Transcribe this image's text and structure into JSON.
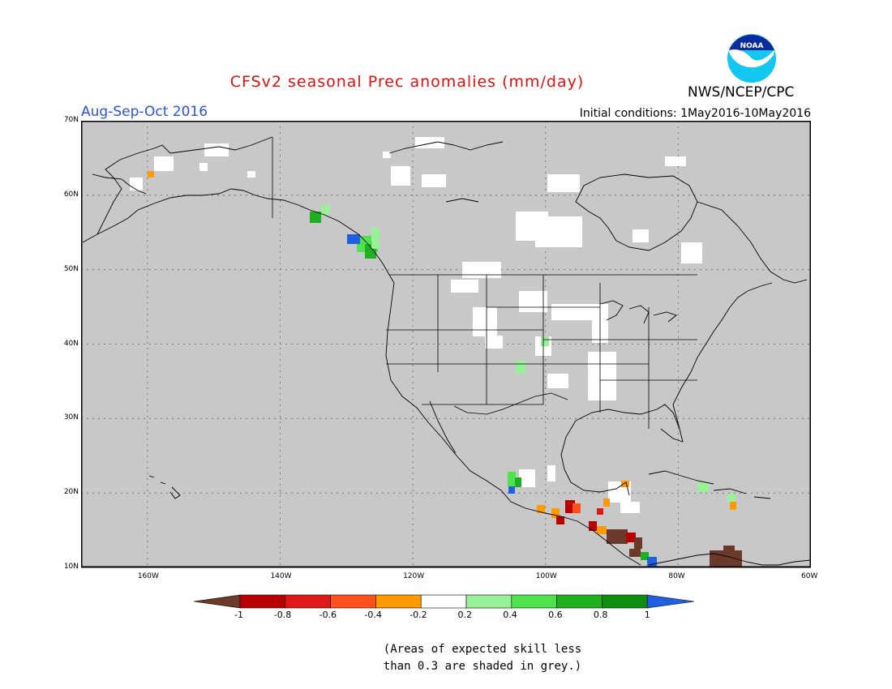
{
  "header": {
    "title": "CFSv2 seasonal Prec anomalies (mm/day)",
    "period": "Aug-Sep-Oct 2016",
    "initial_conditions": "Initial conditions: 1May2016-10May2016",
    "agency": "NWS/NCEP/CPC",
    "logo_text": "NOAA"
  },
  "map": {
    "background_color": "#c8c8c8",
    "lat_labels": [
      "70N",
      "60N",
      "50N",
      "40N",
      "30N",
      "20N",
      "10N"
    ],
    "lon_labels": [
      "160W",
      "140W",
      "120W",
      "100W",
      "80W",
      "60W"
    ],
    "lat_values": [
      70,
      60,
      50,
      40,
      30,
      20,
      10
    ],
    "lon_values": [
      -160,
      -140,
      -120,
      -100,
      -80,
      -60
    ],
    "extent": {
      "lon_min": -170,
      "lon_max": -60,
      "lat_min": 10,
      "lat_max": 70
    }
  },
  "colorbar": {
    "labels": [
      "-1",
      "-0.8",
      "-0.6",
      "-0.4",
      "-0.2",
      "0.2",
      "0.4",
      "0.6",
      "0.8",
      "1"
    ],
    "colors": [
      "#6b3a2a",
      "#b80000",
      "#e01818",
      "#ff4f1a",
      "#ff9a00",
      "#ffffff",
      "#98f098",
      "#4ee34e",
      "#1eb01e",
      "#0f8f0f",
      "#2060e0"
    ]
  },
  "footnote": {
    "line1": "(Areas of expected skill less",
    "line2": "than 0.3 are shaded in grey.)"
  }
}
